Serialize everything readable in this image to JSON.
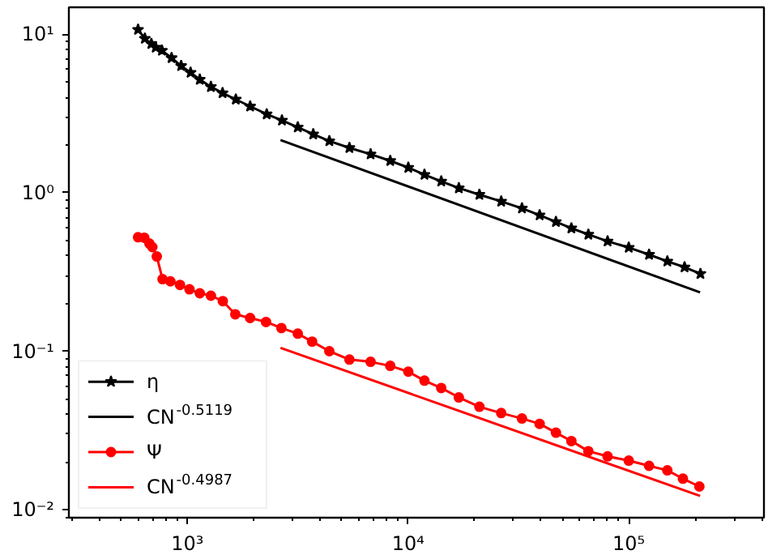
{
  "chart_data": {
    "type": "line",
    "log": "xy",
    "grid": false,
    "legend": "bottom left",
    "xlim": [
      290,
      410000
    ],
    "ylim": [
      0.0089,
      14.8
    ],
    "xticks": [
      {
        "value": 1000,
        "label": "10³"
      },
      {
        "value": 10000,
        "label": "10⁴"
      },
      {
        "value": 100000,
        "label": "10⁵"
      }
    ],
    "yticks": [
      {
        "value": 0.01,
        "label": "10⁻²"
      },
      {
        "value": 0.1,
        "label": "10⁻¹"
      },
      {
        "value": 1,
        "label": "10⁰"
      },
      {
        "value": 10,
        "label": "10¹"
      }
    ],
    "series": [
      {
        "name": "η",
        "color": "#000000",
        "marker": "star",
        "line_style": "solid",
        "x": [
          597,
          641,
          686,
          718,
          766,
          847,
          936,
          1033,
          1137,
          1277,
          1442,
          1656,
          1923,
          2286,
          2680,
          3162,
          3715,
          4395,
          5420,
          6761,
          8299,
          10020,
          11860,
          14130,
          16980,
          21040,
          26420,
          32810,
          39450,
          46770,
          54950,
          65610,
          80170,
          100000,
          123600,
          149600,
          179000,
          211300
        ],
        "values": [
          10.7,
          9.4,
          8.71,
          8.26,
          7.9,
          7.09,
          6.32,
          5.73,
          5.18,
          4.66,
          4.26,
          3.88,
          3.51,
          3.13,
          2.86,
          2.59,
          2.34,
          2.12,
          1.92,
          1.75,
          1.59,
          1.44,
          1.3,
          1.18,
          1.07,
          0.973,
          0.881,
          0.798,
          0.722,
          0.655,
          0.597,
          0.545,
          0.494,
          0.451,
          0.407,
          0.369,
          0.339,
          0.308
        ]
      },
      {
        "name": "CN$^{-0.5119}$",
        "color": "#000000",
        "marker": "none",
        "line_style": "solid",
        "x": [
          2640,
          210500
        ],
        "values": [
          2.15,
          0.235
        ]
      },
      {
        "name": "Ψ",
        "color": "#ff0000",
        "marker": "circle",
        "line_style": "solid",
        "x": [
          597,
          637,
          672,
          693,
          726,
          771,
          837,
          925,
          1021,
          1137,
          1277,
          1446,
          1647,
          1923,
          2270,
          2665,
          3162,
          3673,
          4395,
          5420,
          6761,
          8299,
          10020,
          11860,
          14130,
          16980,
          21040,
          26420,
          32810,
          39450,
          46770,
          54950,
          65610,
          80170,
          100000,
          123600,
          149600,
          176000,
          209000
        ],
        "values": [
          0.524,
          0.52,
          0.478,
          0.454,
          0.396,
          0.285,
          0.276,
          0.262,
          0.246,
          0.232,
          0.224,
          0.207,
          0.171,
          0.162,
          0.153,
          0.14,
          0.129,
          0.115,
          0.1,
          0.0886,
          0.0857,
          0.0808,
          0.0743,
          0.0652,
          0.0586,
          0.0511,
          0.0446,
          0.0407,
          0.0376,
          0.0348,
          0.0306,
          0.0271,
          0.0234,
          0.0217,
          0.0204,
          0.0189,
          0.0177,
          0.0157,
          0.014
        ]
      },
      {
        "name": "CN$^{-0.4987}$",
        "color": "#ff0000",
        "marker": "none",
        "line_style": "solid",
        "x": [
          2640,
          210500
        ],
        "values": [
          0.105,
          0.0122
        ]
      }
    ]
  }
}
